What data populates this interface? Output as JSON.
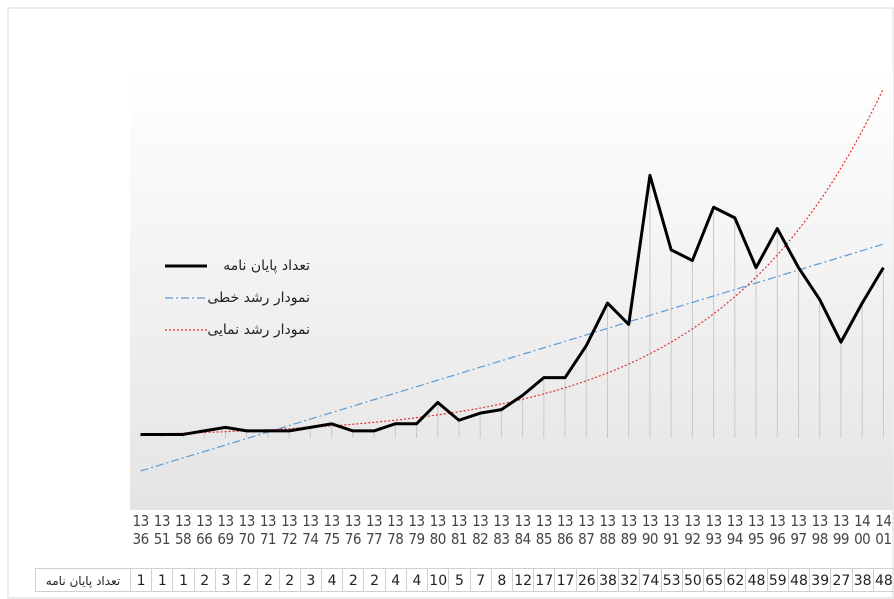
{
  "chart_data": {
    "type": "line",
    "categories": [
      "1336",
      "1351",
      "1358",
      "1366",
      "1369",
      "1370",
      "1371",
      "1372",
      "1374",
      "1375",
      "1376",
      "1377",
      "1378",
      "1379",
      "1380",
      "1381",
      "1382",
      "1383",
      "1384",
      "1385",
      "1386",
      "1387",
      "1388",
      "1389",
      "1390",
      "1391",
      "1392",
      "1393",
      "1394",
      "1395",
      "1396",
      "1397",
      "1398",
      "1399",
      "1400",
      "1401"
    ],
    "series": [
      {
        "name": "تعداد پایان نامه",
        "color": "#000000",
        "values": [
          1,
          1,
          1,
          2,
          3,
          2,
          2,
          2,
          3,
          4,
          2,
          2,
          4,
          4,
          10,
          5,
          7,
          8,
          12,
          17,
          17,
          26,
          38,
          32,
          74,
          53,
          50,
          65,
          62,
          48,
          59,
          48,
          39,
          27,
          38,
          48
        ]
      }
    ],
    "trendlines": [
      {
        "name": "نمودار رشد خطی",
        "color": "#5b9bd5",
        "kind": "linear"
      },
      {
        "name": "نمودار رشد نمایی",
        "color": "#e03030",
        "kind": "exponential"
      }
    ],
    "ylim": [
      0,
      100
    ],
    "drop_lines": true
  }
}
